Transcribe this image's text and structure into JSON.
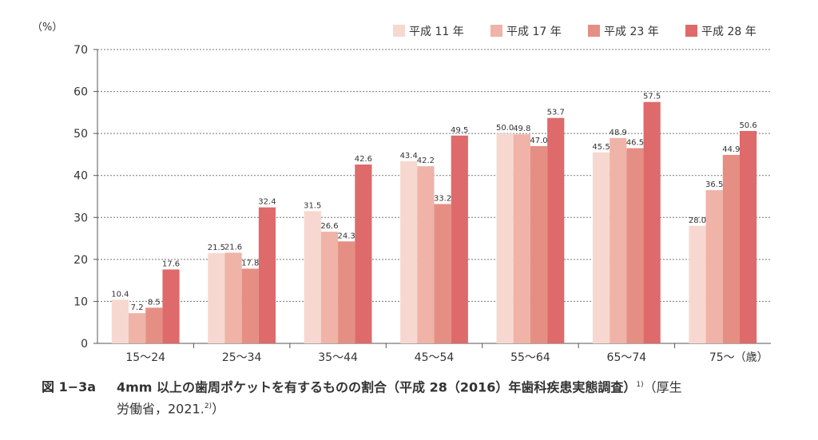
{
  "chart_data": {
    "type": "bar",
    "ylabel": "（%）",
    "xlabel_unit": "（歳）",
    "ylim": [
      0,
      70
    ],
    "yticks": [
      0,
      10,
      20,
      30,
      40,
      50,
      60,
      70
    ],
    "grid": true,
    "legend_position": "top-right",
    "categories": [
      "15～24",
      "25～34",
      "35～44",
      "45～54",
      "55～64",
      "65～74",
      "75～"
    ],
    "series": [
      {
        "name": "平成 11 年",
        "color": "#f7d8d0",
        "values": [
          10.4,
          21.5,
          31.5,
          43.4,
          50.0,
          45.5,
          28.0
        ]
      },
      {
        "name": "平成 17 年",
        "color": "#efb3a8",
        "values": [
          7.2,
          21.6,
          26.6,
          42.2,
          49.8,
          48.9,
          36.5
        ]
      },
      {
        "name": "平成 23 年",
        "color": "#e58f84",
        "values": [
          8.5,
          17.8,
          24.3,
          33.2,
          47.0,
          46.5,
          44.9
        ]
      },
      {
        "name": "平成 28 年",
        "color": "#de6a6b",
        "values": [
          17.6,
          32.4,
          42.6,
          49.5,
          53.7,
          57.5,
          50.6
        ]
      }
    ]
  },
  "caption": {
    "label": "図 1−3a",
    "title": "4mm 以上の歯周ポケットを有するものの割合（平成 28（2016）年歯科疾患実態調査）",
    "title_sup": "1)",
    "source_line1": "（厚生",
    "source_line2": "労働省，2021.",
    "source_sup": "2)",
    "source_end": "）"
  }
}
